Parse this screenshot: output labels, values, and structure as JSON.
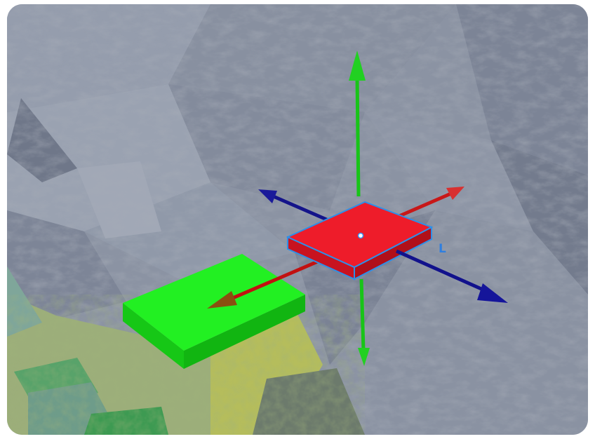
{
  "viewport": {
    "local_indicator": "L"
  }
}
